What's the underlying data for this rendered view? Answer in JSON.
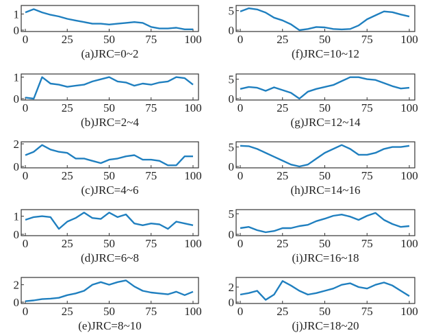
{
  "chart_data": [
    {
      "type": "line",
      "title": "(a)JRC=0~2",
      "xlim": [
        0,
        100
      ],
      "ylim": [
        0,
        1.4
      ],
      "xticks": [
        "0",
        "25",
        "50",
        "75",
        "100"
      ],
      "yticks": [
        "0",
        "1"
      ],
      "x_step": 5,
      "values": [
        1.1,
        1.3,
        1.1,
        0.95,
        0.85,
        0.7,
        0.6,
        0.5,
        0.4,
        0.4,
        0.35,
        0.4,
        0.45,
        0.5,
        0.45,
        0.2,
        0.1,
        0.1,
        0.15,
        0.05,
        0.05
      ]
    },
    {
      "type": "line",
      "title": "(b)JRC=2~4",
      "xlim": [
        0,
        100
      ],
      "ylim": [
        0,
        1.05
      ],
      "xticks": [
        "0",
        "25",
        "50",
        "75",
        "100"
      ],
      "yticks": [
        "0",
        "1"
      ],
      "x_step": 5,
      "values": [
        0.05,
        0.0,
        1.0,
        0.7,
        0.65,
        0.55,
        0.6,
        0.65,
        0.8,
        0.9,
        1.0,
        0.8,
        0.75,
        0.6,
        0.7,
        0.65,
        0.75,
        0.8,
        1.0,
        0.95,
        0.65
      ]
    },
    {
      "type": "line",
      "title": "(c)JRC=4~6",
      "xlim": [
        0,
        100
      ],
      "ylim": [
        0,
        2
      ],
      "xticks": [
        "0",
        "25",
        "50",
        "75",
        "100"
      ],
      "yticks": [
        "0",
        "2"
      ],
      "x_step": 5,
      "values": [
        1.0,
        1.3,
        1.9,
        1.5,
        1.3,
        1.2,
        0.7,
        0.7,
        0.5,
        0.3,
        0.6,
        0.7,
        0.9,
        1.0,
        0.6,
        0.6,
        0.5,
        0.1,
        0.1,
        0.9,
        0.9
      ]
    },
    {
      "type": "line",
      "title": "(d)JRC=6~8",
      "xlim": [
        0,
        100
      ],
      "ylim": [
        0,
        1.25
      ],
      "xticks": [
        "0",
        "25",
        "50",
        "75",
        "100"
      ],
      "yticks": [
        "0",
        "1"
      ],
      "x_step": 5,
      "values": [
        0.8,
        0.95,
        1.0,
        0.95,
        0.3,
        0.7,
        0.9,
        1.2,
        0.9,
        0.85,
        1.2,
        0.95,
        1.1,
        0.6,
        0.5,
        0.6,
        0.55,
        0.3,
        0.7,
        0.6,
        0.5
      ]
    },
    {
      "type": "line",
      "title": "(e)JRC=8~10",
      "xlim": [
        0,
        100
      ],
      "ylim": [
        0,
        2.6
      ],
      "xticks": [
        "0",
        "25",
        "50",
        "75",
        "100"
      ],
      "yticks": [
        "0",
        "2"
      ],
      "x_step": 5,
      "values": [
        0.1,
        0.2,
        0.35,
        0.4,
        0.5,
        0.8,
        1.0,
        1.3,
        2.0,
        2.3,
        2.0,
        2.3,
        2.5,
        1.8,
        1.3,
        1.1,
        1.0,
        0.9,
        1.2,
        0.8,
        1.2
      ]
    },
    {
      "type": "line",
      "title": "(f)JRC=10~12",
      "xlim": [
        0,
        100
      ],
      "ylim": [
        0,
        5.8
      ],
      "xticks": [
        "0",
        "25",
        "50",
        "75",
        "100"
      ],
      "yticks": [
        "0",
        "5"
      ],
      "x_step": 5,
      "values": [
        4.8,
        5.6,
        5.3,
        4.5,
        3.2,
        2.5,
        1.5,
        0.0,
        0.3,
        0.8,
        0.7,
        0.3,
        0.2,
        0.3,
        1.2,
        2.8,
        3.8,
        4.8,
        4.6,
        4.0,
        3.5
      ]
    },
    {
      "type": "line",
      "title": "(g)JRC=12~14",
      "xlim": [
        0,
        100
      ],
      "ylim": [
        0,
        5.8
      ],
      "xticks": [
        "0",
        "25",
        "50",
        "75",
        "100"
      ],
      "yticks": [
        "0",
        "5"
      ],
      "x_step": 5,
      "values": [
        2.5,
        3.0,
        2.8,
        2.0,
        2.9,
        2.2,
        1.5,
        0.0,
        1.8,
        2.5,
        3.0,
        3.5,
        4.5,
        5.5,
        5.5,
        5.0,
        4.8,
        4.0,
        3.2,
        2.6,
        2.8
      ]
    },
    {
      "type": "line",
      "title": "(h)JRC=14~16",
      "xlim": [
        0,
        100
      ],
      "ylim": [
        0,
        5.8
      ],
      "xticks": [
        "0",
        "25",
        "50",
        "75",
        "100"
      ],
      "yticks": [
        "0",
        "5"
      ],
      "x_step": 5,
      "values": [
        5.3,
        5.2,
        4.5,
        3.5,
        2.5,
        1.5,
        0.5,
        0.0,
        0.5,
        2.0,
        3.5,
        4.5,
        5.5,
        4.5,
        3.0,
        3.0,
        3.5,
        4.5,
        5.0,
        5.0,
        5.3
      ]
    },
    {
      "type": "line",
      "title": "(i)JRC=16~18",
      "xlim": [
        0,
        100
      ],
      "ylim": [
        0,
        5.5
      ],
      "xticks": [
        "0",
        "25",
        "50",
        "75",
        "100"
      ],
      "yticks": [
        "0",
        "5"
      ],
      "x_step": 5,
      "values": [
        1.5,
        1.8,
        1.0,
        0.5,
        0.8,
        1.5,
        1.5,
        2.0,
        2.3,
        3.2,
        3.8,
        4.5,
        4.8,
        4.3,
        3.5,
        4.5,
        5.2,
        3.5,
        2.5,
        1.8,
        2.0
      ]
    },
    {
      "type": "line",
      "title": "(j)JRC=18~20",
      "xlim": [
        0,
        100
      ],
      "ylim": [
        0,
        3
      ],
      "xticks": [
        "0",
        "25",
        "50",
        "75",
        "100"
      ],
      "yticks": [
        "0",
        "2"
      ],
      "x_step": 5,
      "values": [
        1.0,
        1.2,
        1.5,
        0.3,
        1.0,
        2.8,
        2.2,
        1.5,
        1.0,
        1.2,
        1.5,
        1.8,
        2.3,
        2.5,
        2.0,
        1.8,
        2.3,
        2.6,
        2.2,
        1.5,
        0.8
      ]
    }
  ],
  "line_color": "#1f7fbf"
}
